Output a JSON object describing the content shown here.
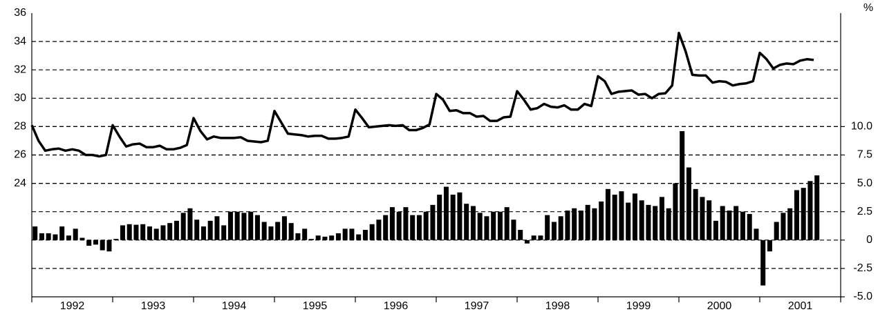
{
  "chart_data": {
    "type": "bar_line",
    "unit_label": "%",
    "categories": [
      "1992",
      null,
      null,
      null,
      null,
      null,
      null,
      null,
      null,
      null,
      null,
      null,
      "1993",
      null,
      null,
      null,
      null,
      null,
      null,
      null,
      null,
      null,
      null,
      null,
      "1994",
      null,
      null,
      null,
      null,
      null,
      null,
      null,
      null,
      null,
      null,
      null,
      "1995",
      null,
      null,
      null,
      null,
      null,
      null,
      null,
      null,
      null,
      null,
      null,
      "1996",
      null,
      null,
      null,
      null,
      null,
      null,
      null,
      null,
      null,
      null,
      null,
      "1997",
      null,
      null,
      null,
      null,
      null,
      null,
      null,
      null,
      null,
      null,
      null,
      "1998",
      null,
      null,
      null,
      null,
      null,
      null,
      null,
      null,
      null,
      null,
      null,
      "1999",
      null,
      null,
      null,
      null,
      null,
      null,
      null,
      null,
      null,
      null,
      null,
      "2000",
      null,
      null,
      null,
      null,
      null,
      null,
      null,
      null,
      null,
      null,
      null,
      "2001",
      null,
      null,
      null,
      null,
      null,
      null,
      null,
      null
    ],
    "ylim": [
      16,
      36
    ],
    "yticks": [
      24,
      26,
      28,
      30,
      32,
      34,
      36
    ],
    "y2lim": [
      -5,
      20
    ],
    "y2ticks": [
      {
        "value": -5,
        "label": "-5.0"
      },
      -2.5,
      0,
      2.5,
      {
        "value": 5,
        "label": "5.0"
      },
      7.5,
      {
        "value": 10,
        "label": "10.0"
      }
    ],
    "grid": true,
    "series": [
      {
        "type": "line",
        "color": "#000000",
        "values": [
          28.1,
          27.0,
          26.3,
          26.4,
          26.45,
          26.3,
          26.4,
          26.3,
          26.0,
          26.0,
          25.9,
          26.0,
          28.1,
          27.3,
          26.6,
          26.75,
          26.8,
          26.55,
          26.55,
          26.65,
          26.4,
          26.4,
          26.5,
          26.7,
          28.6,
          27.7,
          27.1,
          27.3,
          27.2,
          27.2,
          27.2,
          27.25,
          27.0,
          26.95,
          26.9,
          27.0,
          29.1,
          28.3,
          27.5,
          27.45,
          27.4,
          27.3,
          27.35,
          27.35,
          27.15,
          27.15,
          27.2,
          27.3,
          29.2,
          28.6,
          27.95,
          28.0,
          28.05,
          28.1,
          28.05,
          28.1,
          27.75,
          27.75,
          27.9,
          28.15,
          30.3,
          29.9,
          29.1,
          29.15,
          28.95,
          28.95,
          28.7,
          28.75,
          28.4,
          28.4,
          28.65,
          28.7,
          30.5,
          29.9,
          29.2,
          29.3,
          29.6,
          29.4,
          29.35,
          29.5,
          29.2,
          29.2,
          29.6,
          29.45,
          31.55,
          31.2,
          30.3,
          30.45,
          30.5,
          30.55,
          30.25,
          30.3,
          30.0,
          30.3,
          30.35,
          30.9,
          34.6,
          33.3,
          31.65,
          31.6,
          31.6,
          31.1,
          31.2,
          31.15,
          30.9,
          31.0,
          31.05,
          31.2,
          33.2,
          32.75,
          32.1,
          32.35,
          32.45,
          32.4,
          32.65,
          32.75,
          32.7
        ]
      },
      {
        "type": "bar",
        "axis": "y2",
        "color": "#000000",
        "values": [
          1.2,
          0.6,
          0.6,
          0.5,
          1.2,
          0.4,
          1.0,
          0.2,
          -0.5,
          -0.4,
          -0.9,
          -1.0,
          0.1,
          1.3,
          1.4,
          1.35,
          1.4,
          1.2,
          1.0,
          1.3,
          1.5,
          1.7,
          2.4,
          2.8,
          1.8,
          1.2,
          1.7,
          2.1,
          1.3,
          2.5,
          2.5,
          2.4,
          2.5,
          2.2,
          1.6,
          1.2,
          1.6,
          2.1,
          1.5,
          0.6,
          1.0,
          0.1,
          0.4,
          0.3,
          0.4,
          0.6,
          1.0,
          1.0,
          0.5,
          0.9,
          1.4,
          1.8,
          2.2,
          2.9,
          2.5,
          2.9,
          2.2,
          2.2,
          2.5,
          3.1,
          4.0,
          4.7,
          4.0,
          4.2,
          3.2,
          3.0,
          2.4,
          2.1,
          2.5,
          2.5,
          2.9,
          1.8,
          0.9,
          -0.3,
          0.4,
          0.4,
          2.2,
          1.6,
          2.1,
          2.6,
          2.8,
          2.6,
          3.1,
          2.8,
          3.4,
          4.5,
          4.0,
          4.3,
          3.3,
          4.1,
          3.5,
          3.1,
          3.0,
          3.8,
          2.8,
          5.0,
          9.6,
          6.4,
          4.5,
          3.8,
          3.5,
          1.7,
          3.0,
          2.6,
          3.0,
          2.5,
          2.3,
          1.0,
          -4.0,
          -1.0,
          1.6,
          2.4,
          2.8,
          4.4,
          4.6,
          5.2,
          5.7
        ]
      }
    ]
  }
}
